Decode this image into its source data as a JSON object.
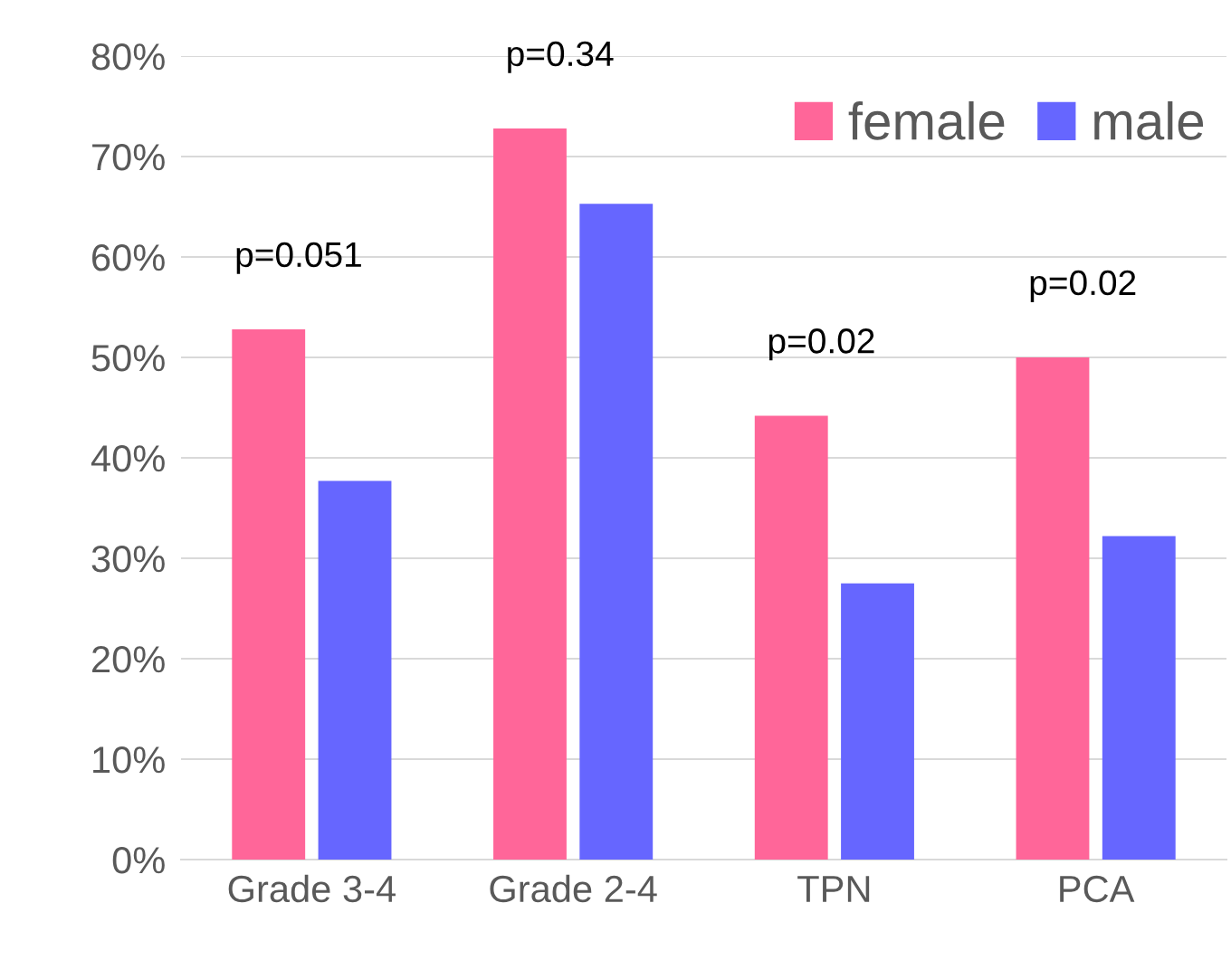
{
  "chart_data": {
    "type": "bar",
    "categories": [
      "Grade 3-4",
      "Grade 2-4",
      "TPN",
      "PCA"
    ],
    "series": [
      {
        "name": "female",
        "color": "#ff6699",
        "values": [
          52.8,
          72.8,
          44.2,
          50.0
        ]
      },
      {
        "name": "male",
        "color": "#6666ff",
        "values": [
          37.7,
          65.3,
          27.5,
          32.2
        ]
      }
    ],
    "ylim": [
      0,
      80
    ],
    "yticks": [
      {
        "value": 0,
        "label": "0%"
      },
      {
        "value": 10,
        "label": "10%"
      },
      {
        "value": 20,
        "label": "20%"
      },
      {
        "value": 30,
        "label": "30%"
      },
      {
        "value": 40,
        "label": "40%"
      },
      {
        "value": 50,
        "label": "50%"
      },
      {
        "value": 60,
        "label": "60%"
      },
      {
        "value": 70,
        "label": "70%"
      },
      {
        "value": 80,
        "label": "80%"
      }
    ],
    "grid": "y",
    "legend": "top right",
    "annotations": [
      "p=0.051",
      "p=0.34",
      "p=0.02",
      "p=0.02"
    ]
  }
}
